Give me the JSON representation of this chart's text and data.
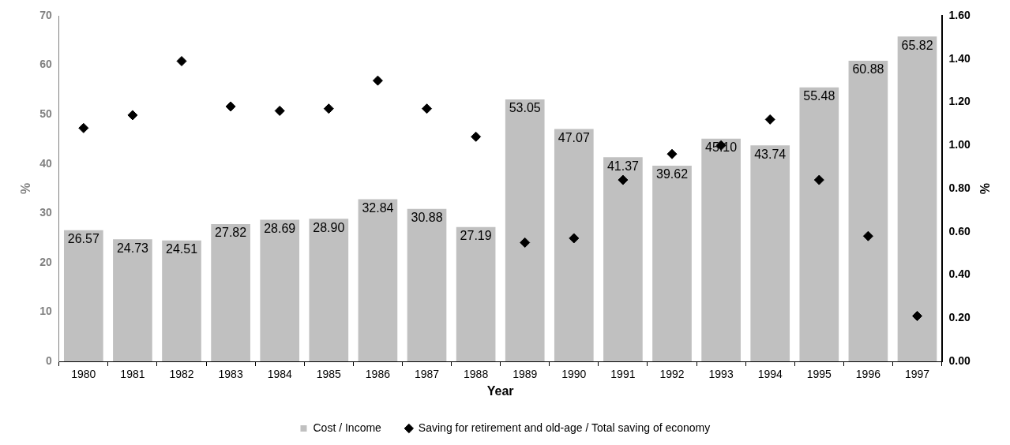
{
  "chart_data": {
    "type": "bar",
    "xlabel": "Year",
    "ylabel": "%",
    "y2label": "%",
    "categories": [
      "1980",
      "1981",
      "1982",
      "1983",
      "1984",
      "1985",
      "1986",
      "1987",
      "1988",
      "1989",
      "1990",
      "1991",
      "1992",
      "1993",
      "1994",
      "1995",
      "1996",
      "1997"
    ],
    "series": [
      {
        "name": "Cost / Income",
        "color": "#c0c0c0",
        "values": [
          26.57,
          24.73,
          24.51,
          27.82,
          28.69,
          28.9,
          32.84,
          30.88,
          27.19,
          53.05,
          47.07,
          41.37,
          39.62,
          45.1,
          43.74,
          55.48,
          60.88,
          65.82
        ],
        "value_labels": [
          "26.57",
          "24.73",
          "24.51",
          "27.82",
          "28.69",
          "28.90",
          "32.84",
          "30.88",
          "27.19",
          "53.05",
          "47.07",
          "41.37",
          "39.62",
          "45.10",
          "43.74",
          "55.48",
          "60.88",
          "65.82"
        ]
      },
      {
        "name": "Saving for retirement and old-age / Total saving of economy",
        "type": "scatter",
        "axis": "y2",
        "marker": "diamond",
        "color": "#000000",
        "values": [
          1.08,
          1.14,
          1.39,
          1.18,
          1.16,
          1.17,
          1.3,
          1.17,
          1.04,
          0.55,
          0.57,
          0.84,
          0.96,
          1.0,
          1.12,
          0.84,
          0.58,
          0.21
        ]
      }
    ],
    "ylim": [
      0,
      70
    ],
    "yticks": [
      0,
      10,
      20,
      30,
      40,
      50,
      60,
      70
    ],
    "y2lim": [
      0,
      1.6
    ],
    "y2ticks": [
      {
        "value": 0,
        "label": "0.00"
      },
      {
        "value": 0.2,
        "label": "0.20"
      },
      {
        "value": 0.4,
        "label": "0.40"
      },
      {
        "value": 0.6,
        "label": "0.60"
      },
      {
        "value": 0.8,
        "label": "0.80"
      },
      {
        "value": 1,
        "label": "1.00"
      },
      {
        "value": 1.2,
        "label": "1.20"
      },
      {
        "value": 1.4,
        "label": "1.40"
      },
      {
        "value": 1.6,
        "label": "1.60"
      }
    ],
    "grid": false,
    "legend": "bottom"
  }
}
